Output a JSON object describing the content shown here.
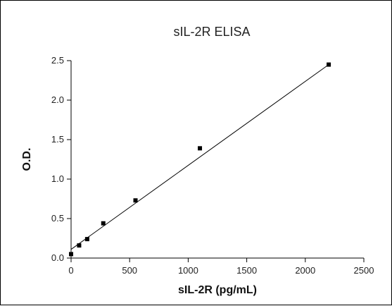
{
  "chart_data": {
    "type": "scatter",
    "title": "sIL-2R ELISA",
    "xlabel": "sIL-2R (pg/mL)",
    "ylabel": "O.D.",
    "xlim": [
      0,
      2500
    ],
    "ylim": [
      0,
      2.5
    ],
    "xticks": [
      "0",
      "500",
      "1000",
      "1500",
      "2000",
      "2500"
    ],
    "yticks": [
      "0.0",
      "0.5",
      "1.0",
      "1.5",
      "2.0",
      "2.5"
    ],
    "grid": false,
    "series": [
      {
        "x": [
          0,
          68.75,
          137.5,
          275,
          550,
          1100,
          2200
        ],
        "y": [
          0.05,
          0.16,
          0.24,
          0.44,
          0.73,
          1.39,
          2.45
        ]
      }
    ],
    "fit_line": {
      "x": [
        0,
        2200
      ],
      "y": [
        0.11,
        2.45
      ]
    },
    "colors": {
      "points": "#000000",
      "line": "#000000",
      "text": "#222222"
    }
  }
}
